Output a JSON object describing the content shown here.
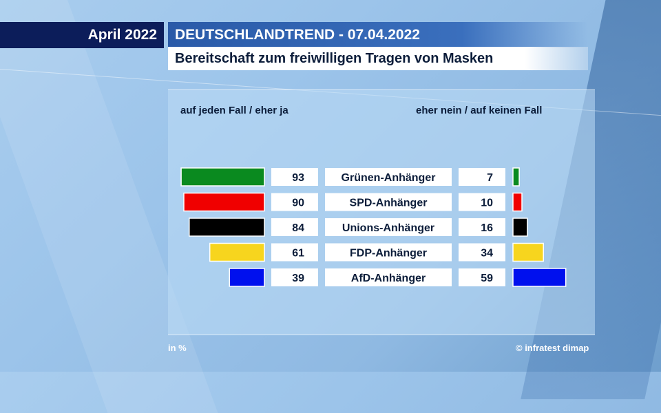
{
  "header": {
    "date": "April 2022",
    "trend": "DEUTSCHLANDTREND - 07.04.2022",
    "subtitle": "Bereitschaft zum freiwilligen Tragen von Masken"
  },
  "columns": {
    "left": "auf jeden Fall / eher ja",
    "right": "eher nein / auf keinen Fall"
  },
  "footer": {
    "unit": "in %",
    "source": "© infratest dimap"
  },
  "chart_data": {
    "type": "bar",
    "categories": [
      "Grünen-Anhänger",
      "SPD-Anhänger",
      "Unions-Anhänger",
      "FDP-Anhänger",
      "AfD-Anhänger"
    ],
    "series": [
      {
        "name": "auf jeden Fall / eher ja",
        "values": [
          93,
          90,
          84,
          61,
          39
        ]
      },
      {
        "name": "eher nein / auf keinen Fall",
        "values": [
          7,
          10,
          16,
          34,
          59
        ]
      }
    ],
    "bar_colors": [
      "#0a8a1f",
      "#f00000",
      "#000000",
      "#f7d51e",
      "#0010ee"
    ],
    "unit": "in %"
  }
}
